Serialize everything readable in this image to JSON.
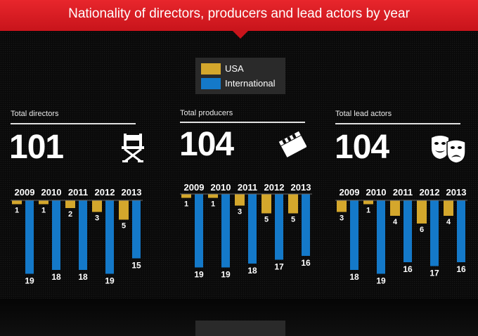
{
  "title": "Nationality of directors, producers and lead actors by year",
  "legend": {
    "usa": "USA",
    "international": "International"
  },
  "colors": {
    "usa": "#d4a72c",
    "international": "#1479c9",
    "banner": "#d01c22"
  },
  "chart_data": [
    {
      "type": "bar",
      "title": "Total directors",
      "total": "101",
      "icon": "director-chair-icon",
      "categories": [
        "2009",
        "2010",
        "2011",
        "2012",
        "2013"
      ],
      "series": [
        {
          "name": "USA",
          "values": [
            1,
            1,
            2,
            3,
            5
          ]
        },
        {
          "name": "International",
          "values": [
            19,
            18,
            18,
            19,
            15
          ]
        }
      ],
      "ylim": [
        0,
        20
      ],
      "direction": "downward"
    },
    {
      "type": "bar",
      "title": "Total producers",
      "total": "104",
      "icon": "clapperboard-icon",
      "categories": [
        "2009",
        "2010",
        "2011",
        "2012",
        "2013"
      ],
      "series": [
        {
          "name": "USA",
          "values": [
            1,
            1,
            3,
            5,
            5
          ]
        },
        {
          "name": "International",
          "values": [
            19,
            19,
            18,
            17,
            16
          ]
        }
      ],
      "ylim": [
        0,
        20
      ],
      "direction": "downward"
    },
    {
      "type": "bar",
      "title": "Total lead actors",
      "total": "104",
      "icon": "theater-masks-icon",
      "categories": [
        "2009",
        "2010",
        "2011",
        "2012",
        "2013"
      ],
      "series": [
        {
          "name": "USA",
          "values": [
            3,
            1,
            4,
            6,
            4
          ]
        },
        {
          "name": "International",
          "values": [
            18,
            19,
            16,
            17,
            16
          ]
        }
      ],
      "ylim": [
        0,
        20
      ],
      "direction": "downward"
    }
  ]
}
